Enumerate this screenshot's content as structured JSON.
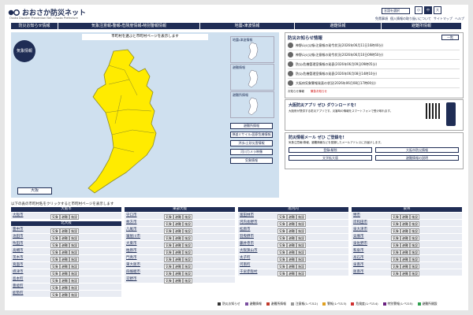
{
  "header": {
    "logo": "おおさか防災ネット",
    "subtitle": "Osaka Disaster Prevention Net / Osaka Prefecture",
    "language": "言語を選択",
    "sizes": [
      "小",
      "中",
      "大"
    ],
    "links": [
      "免責事項",
      "個人情報の取り扱いについて",
      "サイトマップ",
      "ヘルプ"
    ]
  },
  "nav": [
    "防災お知らせ情報",
    "気象注意報・警報・危険度情報・特別警報情報",
    "地震・津波情報",
    "避難情報",
    "避難所情報"
  ],
  "map": {
    "caption": "市町村を選ぶと市町村ページを表示します",
    "badge": "気象情報",
    "select": "大阪"
  },
  "side": {
    "thumbs": [
      "地震・津波情報",
      "避難情報",
      "避難所情報"
    ],
    "buttons": [
      "避難所情報",
      "弾道ミサイル・国家危機情報",
      "洪水・土砂災害情報",
      "河川カメラ映像",
      "気象情報"
    ]
  },
  "news": {
    "title": "防災お知らせ情報",
    "more": "一覧",
    "items": [
      "神野山火災報・注意報の発令状況(2026年06月11日16時40分)",
      "神野山火災報・注意報の発令状況(2026年06月10日09時50分)",
      "防災・危機管理室情報の発表(2026年06月09日09時05分)",
      "防災・危機管理室情報の発表(2026年06月08日14時10分)",
      "大阪府気象警報発表の状況(2026年06月08日17時00分)"
    ],
    "legend": [
      "お知らせ情報",
      "緊急お知らせ"
    ]
  },
  "app": {
    "title": "大阪防災アプリ ぜひ ダウンロードを!",
    "text": "大阪府が提供する防災アプリです。災害時の情報をスマートフォンで受け取れます。"
  },
  "mail": {
    "title": "防災情報メール ぜひ ご登録を!",
    "text": "気象注意報・警報、避難情報などを登録したメールアドレスにお届けします。",
    "buttons": [
      "登録・解除",
      "大阪市防災情報",
      "文字拡大版",
      "避難情報の説明"
    ]
  },
  "table": {
    "caption": "以下の表の市町村名をクリックすると市町村ページを表示します",
    "tags": [
      "気象",
      "避難",
      "施設"
    ],
    "regions": [
      {
        "name": "大阪市",
        "cities": [
          "大阪市"
        ]
      },
      {
        "name": "北大阪",
        "cities": [
          "豊中市",
          "池田市",
          "吹田市",
          "高槻市",
          "茨木市",
          "箕面市",
          "摂津市",
          "島本町",
          "豊能町",
          "能勢町"
        ]
      },
      {
        "name": "東部大阪",
        "cities": [
          "守口市",
          "枚方市",
          "八尾市",
          "寝屋川市",
          "大東市",
          "柏原市",
          "門真市",
          "東大阪市",
          "四條畷市",
          "交野市"
        ]
      },
      {
        "name": "南河内",
        "cities": [
          "富田林市",
          "河内長野市",
          "松原市",
          "羽曳野市",
          "藤井寺市",
          "大阪狭山市",
          "太子町",
          "河南町",
          "千早赤阪村"
        ]
      },
      {
        "name": "泉州",
        "cities": [
          "堺市",
          "岸和田市",
          "泉大津市",
          "貝塚市",
          "泉佐野市",
          "和泉市",
          "高石市",
          "泉南市",
          "阪南市"
        ]
      }
    ]
  },
  "footer": [
    "防災お知らせ",
    "避難情報",
    "避難所情報",
    "注意報(レベル2)",
    "警報(レベル3)",
    "危険度(レベル4)",
    "特別警報(レベル5)",
    "避難所開設"
  ]
}
